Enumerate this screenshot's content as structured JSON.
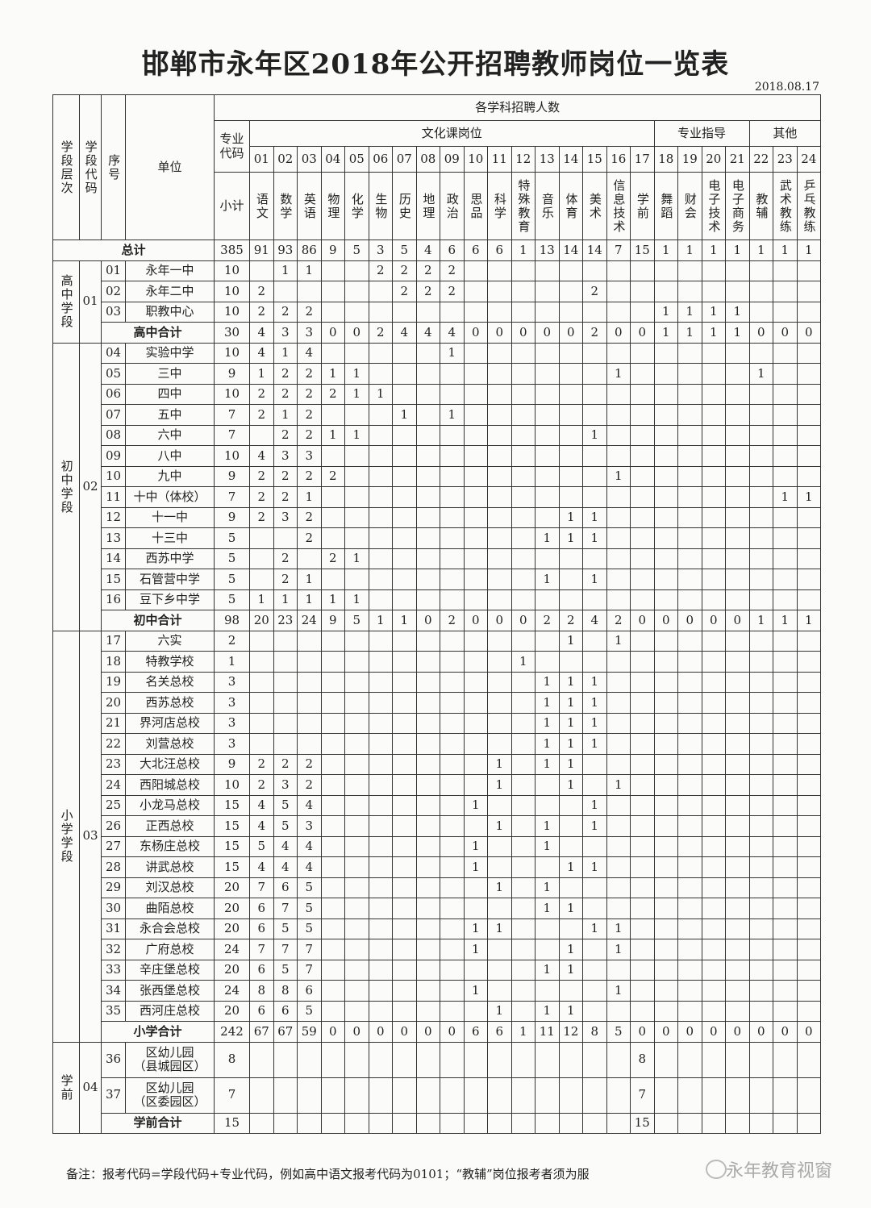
{
  "title": "邯郸市永年区2018年公开招聘教师岗位一览表",
  "date": "2018.08.17",
  "header": {
    "level": "学段层次",
    "level_code": "学段代码",
    "seq": "序号",
    "unit": "单位",
    "recruit_count": "各学科招聘人数",
    "major_code": "专业代码",
    "subtotal": "小计",
    "group_culture": "文化课岗位",
    "group_professional": "专业指导",
    "group_other": "其他",
    "subjects": [
      {
        "code": "01",
        "name": "语文"
      },
      {
        "code": "02",
        "name": "数学"
      },
      {
        "code": "03",
        "name": "英语"
      },
      {
        "code": "04",
        "name": "物理"
      },
      {
        "code": "05",
        "name": "化学"
      },
      {
        "code": "06",
        "name": "生物"
      },
      {
        "code": "07",
        "name": "历史"
      },
      {
        "code": "08",
        "name": "地理"
      },
      {
        "code": "09",
        "name": "政治"
      },
      {
        "code": "10",
        "name": "思品"
      },
      {
        "code": "11",
        "name": "科学"
      },
      {
        "code": "12",
        "name": "特殊教育"
      },
      {
        "code": "13",
        "name": "音乐"
      },
      {
        "code": "14",
        "name": "体育"
      },
      {
        "code": "15",
        "name": "美术"
      },
      {
        "code": "16",
        "name": "信息技术"
      },
      {
        "code": "17",
        "name": "学前"
      },
      {
        "code": "18",
        "name": "舞蹈"
      },
      {
        "code": "19",
        "name": "财会"
      },
      {
        "code": "20",
        "name": "电子技术"
      },
      {
        "code": "21",
        "name": "电子商务"
      },
      {
        "code": "22",
        "name": "教辅"
      },
      {
        "code": "23",
        "name": "武术教练"
      },
      {
        "code": "24",
        "name": "乒乓教练"
      }
    ]
  },
  "grand_total": {
    "label": "总计",
    "total": "385",
    "counts": [
      "91",
      "93",
      "86",
      "9",
      "5",
      "3",
      "5",
      "4",
      "6",
      "6",
      "6",
      "1",
      "13",
      "14",
      "14",
      "7",
      "15",
      "1",
      "1",
      "1",
      "1",
      "1",
      "1",
      "1"
    ]
  },
  "sections": [
    {
      "level": "高中学段",
      "code": "01",
      "rows": [
        {
          "seq": "01",
          "unit": "永年一中",
          "total": "10",
          "counts": {
            "02": "1",
            "03": "1",
            "06": "2",
            "07": "2",
            "08": "2",
            "09": "2"
          }
        },
        {
          "seq": "02",
          "unit": "永年二中",
          "total": "10",
          "counts": {
            "01": "2",
            "07": "2",
            "08": "2",
            "09": "2",
            "15": "2"
          }
        },
        {
          "seq": "03",
          "unit": "职教中心",
          "total": "10",
          "counts": {
            "01": "2",
            "02": "2",
            "03": "2",
            "18": "1",
            "19": "1",
            "20": "1",
            "21": "1"
          }
        }
      ],
      "subtotal": {
        "label": "高中合计",
        "total": "30",
        "counts": [
          "4",
          "3",
          "3",
          "0",
          "0",
          "2",
          "4",
          "4",
          "4",
          "0",
          "0",
          "0",
          "0",
          "0",
          "2",
          "0",
          "0",
          "1",
          "1",
          "1",
          "1",
          "0",
          "0",
          "0"
        ]
      }
    },
    {
      "level": "初中学段",
      "code": "02",
      "rows": [
        {
          "seq": "04",
          "unit": "实验中学",
          "total": "10",
          "counts": {
            "01": "4",
            "02": "1",
            "03": "4",
            "09": "1"
          }
        },
        {
          "seq": "05",
          "unit": "三中",
          "total": "9",
          "counts": {
            "01": "1",
            "02": "2",
            "03": "2",
            "04": "1",
            "05": "1",
            "16": "1",
            "22": "1"
          }
        },
        {
          "seq": "06",
          "unit": "四中",
          "total": "10",
          "counts": {
            "01": "2",
            "02": "2",
            "03": "2",
            "04": "2",
            "05": "1",
            "06": "1"
          }
        },
        {
          "seq": "07",
          "unit": "五中",
          "total": "7",
          "counts": {
            "01": "2",
            "02": "1",
            "03": "2",
            "07": "1",
            "09": "1"
          }
        },
        {
          "seq": "08",
          "unit": "六中",
          "total": "7",
          "counts": {
            "02": "2",
            "03": "2",
            "04": "1",
            "05": "1",
            "15": "1"
          }
        },
        {
          "seq": "09",
          "unit": "八中",
          "total": "10",
          "counts": {
            "01": "4",
            "02": "3",
            "03": "3"
          }
        },
        {
          "seq": "10",
          "unit": "九中",
          "total": "9",
          "counts": {
            "01": "2",
            "02": "2",
            "03": "2",
            "04": "2",
            "16": "1"
          }
        },
        {
          "seq": "11",
          "unit": "十中（体校）",
          "total": "7",
          "counts": {
            "01": "2",
            "02": "2",
            "03": "1",
            "23": "1",
            "24": "1"
          }
        },
        {
          "seq": "12",
          "unit": "十一中",
          "total": "9",
          "counts": {
            "01": "2",
            "02": "3",
            "03": "2",
            "14": "1",
            "15": "1"
          }
        },
        {
          "seq": "13",
          "unit": "十三中",
          "total": "5",
          "counts": {
            "03": "2",
            "13": "1",
            "14": "1",
            "15": "1"
          }
        },
        {
          "seq": "14",
          "unit": "西苏中学",
          "total": "5",
          "counts": {
            "02": "2",
            "04": "2",
            "05": "1"
          }
        },
        {
          "seq": "15",
          "unit": "石管营中学",
          "total": "5",
          "counts": {
            "02": "2",
            "03": "1",
            "13": "1",
            "15": "1"
          }
        },
        {
          "seq": "16",
          "unit": "豆下乡中学",
          "total": "5",
          "counts": {
            "01": "1",
            "02": "1",
            "03": "1",
            "04": "1",
            "05": "1"
          }
        }
      ],
      "subtotal": {
        "label": "初中合计",
        "total": "98",
        "counts": [
          "20",
          "23",
          "24",
          "9",
          "5",
          "1",
          "1",
          "0",
          "2",
          "0",
          "0",
          "0",
          "2",
          "2",
          "4",
          "2",
          "0",
          "0",
          "0",
          "0",
          "0",
          "1",
          "1",
          "1"
        ]
      }
    },
    {
      "level": "小学学段",
      "code": "03",
      "rows": [
        {
          "seq": "17",
          "unit": "六实",
          "total": "2",
          "counts": {
            "14": "1",
            "16": "1"
          }
        },
        {
          "seq": "18",
          "unit": "特教学校",
          "total": "1",
          "counts": {
            "12": "1"
          }
        },
        {
          "seq": "19",
          "unit": "名关总校",
          "total": "3",
          "counts": {
            "13": "1",
            "14": "1",
            "15": "1"
          }
        },
        {
          "seq": "20",
          "unit": "西苏总校",
          "total": "3",
          "counts": {
            "13": "1",
            "14": "1",
            "15": "1"
          }
        },
        {
          "seq": "21",
          "unit": "界河店总校",
          "total": "3",
          "counts": {
            "13": "1",
            "14": "1",
            "15": "1"
          }
        },
        {
          "seq": "22",
          "unit": "刘营总校",
          "total": "3",
          "counts": {
            "13": "1",
            "14": "1",
            "15": "1"
          }
        },
        {
          "seq": "23",
          "unit": "大北汪总校",
          "total": "9",
          "counts": {
            "01": "2",
            "02": "2",
            "03": "2",
            "11": "1",
            "13": "1",
            "14": "1"
          }
        },
        {
          "seq": "24",
          "unit": "西阳城总校",
          "total": "10",
          "counts": {
            "01": "2",
            "02": "3",
            "03": "2",
            "11": "1",
            "14": "1",
            "16": "1"
          }
        },
        {
          "seq": "25",
          "unit": "小龙马总校",
          "total": "15",
          "counts": {
            "01": "4",
            "02": "5",
            "03": "4",
            "10": "1",
            "15": "1"
          }
        },
        {
          "seq": "26",
          "unit": "正西总校",
          "total": "15",
          "counts": {
            "01": "4",
            "02": "5",
            "03": "3",
            "11": "1",
            "13": "1",
            "15": "1"
          }
        },
        {
          "seq": "27",
          "unit": "东杨庄总校",
          "total": "15",
          "counts": {
            "01": "5",
            "02": "4",
            "03": "4",
            "10": "1",
            "13": "1"
          }
        },
        {
          "seq": "28",
          "unit": "讲武总校",
          "total": "15",
          "counts": {
            "01": "4",
            "02": "4",
            "03": "4",
            "10": "1",
            "14": "1",
            "15": "1"
          }
        },
        {
          "seq": "29",
          "unit": "刘汉总校",
          "total": "20",
          "counts": {
            "01": "7",
            "02": "6",
            "03": "5",
            "11": "1",
            "13": "1"
          }
        },
        {
          "seq": "30",
          "unit": "曲陌总校",
          "total": "20",
          "counts": {
            "01": "6",
            "02": "7",
            "03": "5",
            "13": "1",
            "14": "1"
          }
        },
        {
          "seq": "31",
          "unit": "永合会总校",
          "total": "20",
          "counts": {
            "01": "6",
            "02": "5",
            "03": "5",
            "10": "1",
            "11": "1",
            "15": "1",
            "16": "1"
          }
        },
        {
          "seq": "32",
          "unit": "广府总校",
          "total": "24",
          "counts": {
            "01": "7",
            "02": "7",
            "03": "7",
            "10": "1",
            "14": "1",
            "16": "1"
          }
        },
        {
          "seq": "33",
          "unit": "辛庄堡总校",
          "total": "20",
          "counts": {
            "01": "6",
            "02": "5",
            "03": "7",
            "13": "1",
            "14": "1"
          }
        },
        {
          "seq": "34",
          "unit": "张西堡总校",
          "total": "24",
          "counts": {
            "01": "8",
            "02": "8",
            "03": "6",
            "10": "1",
            "16": "1"
          }
        },
        {
          "seq": "35",
          "unit": "西河庄总校",
          "total": "20",
          "counts": {
            "01": "6",
            "02": "6",
            "03": "5",
            "11": "1",
            "13": "1",
            "14": "1"
          }
        }
      ],
      "subtotal": {
        "label": "小学合计",
        "total": "242",
        "counts": [
          "67",
          "67",
          "59",
          "0",
          "0",
          "0",
          "0",
          "0",
          "0",
          "6",
          "6",
          "1",
          "11",
          "12",
          "8",
          "5",
          "0",
          "0",
          "0",
          "0",
          "0",
          "0",
          "0",
          "0"
        ]
      }
    },
    {
      "level": "学前",
      "code": "04",
      "tall": true,
      "rows": [
        {
          "seq": "36",
          "unit": "区幼儿园",
          "unit2": "（县城园区）",
          "total": "8",
          "counts": {
            "17": "8"
          }
        },
        {
          "seq": "37",
          "unit": "区幼儿园",
          "unit2": "（区委园区）",
          "total": "7",
          "counts": {
            "17": "7"
          }
        }
      ],
      "subtotal": {
        "label": "学前合计",
        "total": "15",
        "counts": [
          "",
          "",
          "",
          "",
          "",
          "",
          "",
          "",
          "",
          "",
          "",
          "",
          "",
          "",
          "",
          "",
          "15",
          "",
          "",
          "",
          "",
          "",
          "",
          ""
        ]
      }
    }
  ],
  "note": "备注：报考代码=学段代码+专业代码，例如高中语文报考代码为0101；“教辅”岗位报考者须为服",
  "watermark": "永年教育视窗"
}
